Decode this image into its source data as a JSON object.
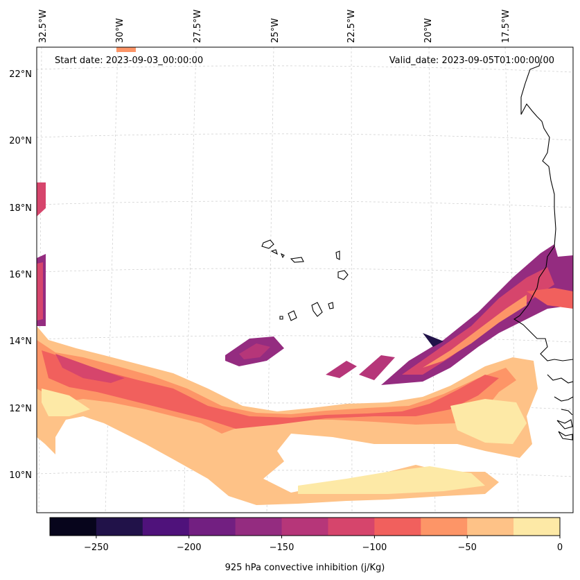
{
  "header": {
    "start_date": "Start date: 2023-09-03_00:00:00",
    "valid_date": "Valid_date: 2023-09-05T01:00:00.00"
  },
  "map": {
    "lon_labels": [
      "32.5°W",
      "30°W",
      "27.5°W",
      "25°W",
      "22.5°W",
      "20°W",
      "17.5°W"
    ],
    "lat_labels": [
      "22°N",
      "20°N",
      "18°N",
      "16°N",
      "14°N",
      "12°N",
      "10°N"
    ],
    "gridlines": true,
    "coastline_color": "#000000"
  },
  "colorbar": {
    "label": "925 hPa convective inhibition (j/Kg)",
    "tick_labels": [
      "−250",
      "−200",
      "−150",
      "−100",
      "−50",
      "0"
    ],
    "colors": [
      "#07051c",
      "#211249",
      "#4f127b",
      "#721f81",
      "#942c80",
      "#b63679",
      "#d6456c",
      "#f1605d",
      "#fd9567",
      "#fec287",
      "#fde9a6"
    ]
  }
}
